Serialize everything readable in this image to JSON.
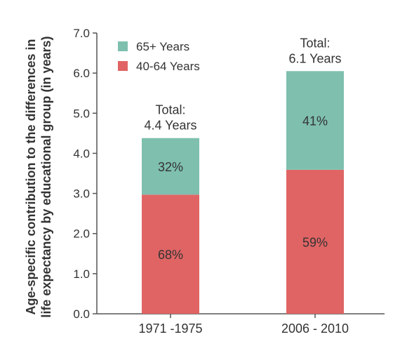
{
  "chart_data": {
    "type": "bar",
    "stacked": true,
    "ylabel_lines": [
      "Age-specific contribution to the differences in",
      "life expectancy by educational group (in years)"
    ],
    "ylim": [
      0,
      7
    ],
    "yticks": [
      "0.0",
      "1.0",
      "2.0",
      "3.0",
      "4.0",
      "5.0",
      "6.0",
      "7.0"
    ],
    "categories": [
      "1971 -1975",
      "2006 - 2010"
    ],
    "series": [
      {
        "name": "40-64 Years",
        "color": "#e06464",
        "values": [
          2.97,
          3.59
        ],
        "labels": [
          "68%",
          "59%"
        ]
      },
      {
        "name": "65+ Years",
        "color": "#7fbfae",
        "values": [
          1.41,
          2.46
        ],
        "labels": [
          "32%",
          "41%"
        ]
      }
    ],
    "totals": [
      [
        "Total:",
        "4.4 Years"
      ],
      [
        "Total:",
        "6.1 Years"
      ]
    ],
    "legend": {
      "placement": "top-left",
      "items": [
        {
          "label": "65+ Years",
          "color": "#7fbfae"
        },
        {
          "label": "40-64 Years",
          "color": "#e06464"
        }
      ]
    },
    "grid": false
  }
}
